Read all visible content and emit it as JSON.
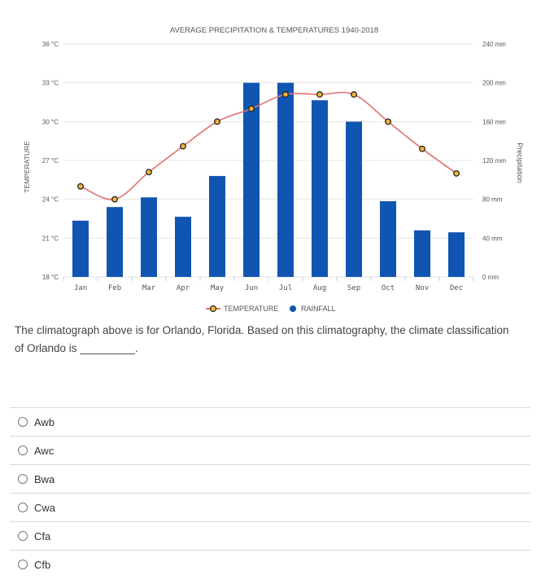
{
  "chart_data": {
    "type": "bar+line",
    "title": "AVERAGE PRECIPITATION & TEMPERATURES 1940-2018",
    "categories": [
      "Jan",
      "Feb",
      "Mar",
      "Apr",
      "May",
      "Jun",
      "Jul",
      "Aug",
      "Sep",
      "Oct",
      "Nov",
      "Dec"
    ],
    "series": [
      {
        "name": "TEMPERATURE",
        "type": "line",
        "axis": "left",
        "color": "#e07070",
        "values": [
          25.0,
          24.0,
          26.1,
          28.1,
          30.0,
          31.0,
          32.1,
          32.1,
          32.1,
          30.0,
          27.9,
          26.0
        ]
      },
      {
        "name": "RAINFALL",
        "type": "bar",
        "axis": "right",
        "color": "#1155b3",
        "values": [
          58,
          72,
          82,
          62,
          104,
          200,
          200,
          182,
          160,
          78,
          48,
          46
        ]
      }
    ],
    "y_left": {
      "label": "TEMPERATURE",
      "range": [
        18,
        36
      ],
      "ticks": [
        "18 °C",
        "21 °C",
        "24 °C",
        "27 °C",
        "30 °C",
        "33 °C",
        "36 °C"
      ]
    },
    "y_right": {
      "label": "Precipitation",
      "range": [
        0,
        240
      ],
      "ticks": [
        "0 mm",
        "40 mm",
        "80 mm",
        "120 mm",
        "160 mm",
        "200 mm",
        "240 mm"
      ]
    },
    "legend_position": "bottom",
    "grid": true
  },
  "question": {
    "text": "The climatograph above is for Orlando, Florida. Based on this climatography, the climate classification of Orlando is",
    "blank": "_________."
  },
  "options": [
    "Awb",
    "Awc",
    "Bwa",
    "Cwa",
    "Cfa",
    "Cfb"
  ]
}
